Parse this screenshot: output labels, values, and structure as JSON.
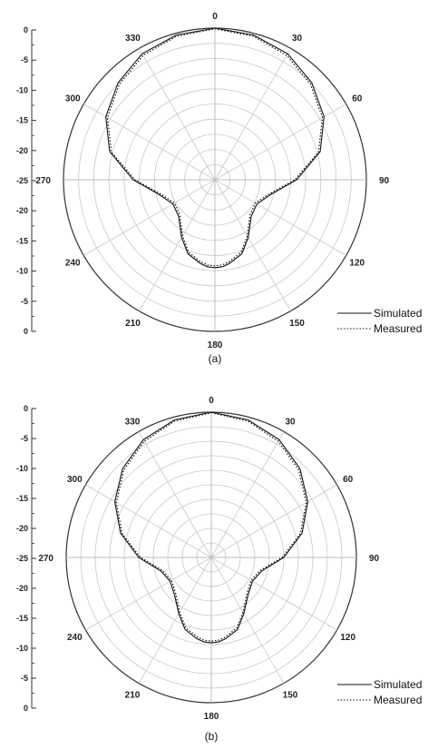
{
  "chart_data": [
    {
      "type": "polar-line",
      "caption": "(a)",
      "angle_labels": [
        "0",
        "30",
        "60",
        "90",
        "120",
        "150",
        "180",
        "210",
        "240",
        "270",
        "300",
        "330"
      ],
      "radial_ticks": [
        "0",
        "-5",
        "-10",
        "-15",
        "-20",
        "-25",
        "-20",
        "-15",
        "-10",
        "-5",
        "0"
      ],
      "rlim": [
        -25,
        0
      ],
      "legend": {
        "position": "bottom-right",
        "entries": [
          "Simulated",
          "Measured"
        ]
      },
      "series": [
        {
          "name": "Simulated",
          "style": "solid",
          "theta": [
            0,
            15,
            30,
            45,
            60,
            75,
            90,
            105,
            120,
            135,
            150,
            160,
            170,
            175,
            180,
            185,
            190,
            200,
            210,
            225,
            240,
            255,
            270,
            285,
            300,
            315,
            330,
            345
          ],
          "r": [
            0,
            -0.3,
            -1,
            -2.4,
            -4.2,
            -7,
            -11.5,
            -15.5,
            -17,
            -16.5,
            -14,
            -12,
            -11,
            -10.6,
            -10.5,
            -10.6,
            -11,
            -12,
            -14,
            -16.5,
            -17,
            -15.5,
            -11.5,
            -7,
            -4.2,
            -2.4,
            -1,
            -0.3
          ]
        },
        {
          "name": "Measured",
          "style": "dotted",
          "theta": [
            0,
            15,
            30,
            45,
            60,
            75,
            90,
            105,
            120,
            135,
            150,
            160,
            170,
            175,
            180,
            185,
            190,
            200,
            210,
            225,
            240,
            255,
            270,
            285,
            300,
            315,
            330,
            345
          ],
          "r": [
            -0.1,
            -0.5,
            -1.3,
            -2.7,
            -4.5,
            -7.3,
            -11.8,
            -15.8,
            -17.3,
            -16.8,
            -14.3,
            -12.3,
            -11.3,
            -10.9,
            -10.8,
            -10.9,
            -11.3,
            -12.3,
            -14.3,
            -16.8,
            -17.3,
            -15.8,
            -11.8,
            -7.3,
            -4.5,
            -2.7,
            -1.3,
            -0.5
          ]
        }
      ]
    },
    {
      "type": "polar-line",
      "caption": "(b)",
      "angle_labels": [
        "0",
        "30",
        "60",
        "90",
        "120",
        "150",
        "180",
        "210",
        "240",
        "270",
        "300",
        "330"
      ],
      "radial_ticks": [
        "0",
        "-5",
        "-10",
        "-15",
        "-20",
        "-25",
        "-20",
        "-15",
        "-10",
        "-5",
        "0"
      ],
      "rlim": [
        -25,
        0
      ],
      "legend": {
        "position": "bottom-right",
        "entries": [
          "Simulated",
          "Measured"
        ]
      },
      "series": [
        {
          "name": "Simulated",
          "style": "solid",
          "theta": [
            0,
            15,
            30,
            45,
            60,
            75,
            90,
            105,
            120,
            135,
            150,
            160,
            170,
            175,
            180,
            185,
            190,
            200,
            210,
            225,
            240,
            255,
            270,
            285,
            300,
            315,
            330,
            345
          ],
          "r": [
            0,
            -0.5,
            -1.6,
            -3.4,
            -5.8,
            -8.8,
            -12.5,
            -16,
            -16.8,
            -16,
            -13.8,
            -11.8,
            -10.8,
            -10.4,
            -10.3,
            -10.4,
            -10.8,
            -11.8,
            -13.8,
            -16,
            -16.8,
            -16,
            -12.5,
            -8.8,
            -5.8,
            -3.4,
            -1.6,
            -0.5
          ]
        },
        {
          "name": "Measured",
          "style": "dotted",
          "theta": [
            0,
            15,
            30,
            45,
            60,
            75,
            90,
            105,
            120,
            135,
            150,
            160,
            170,
            175,
            180,
            185,
            190,
            200,
            210,
            225,
            240,
            255,
            270,
            285,
            300,
            315,
            330,
            345
          ],
          "r": [
            -0.1,
            -0.7,
            -1.9,
            -3.7,
            -6.1,
            -9.1,
            -12.8,
            -16.3,
            -17.1,
            -16.3,
            -14.1,
            -12.1,
            -11.1,
            -10.7,
            -10.6,
            -10.7,
            -11.1,
            -12.1,
            -14.1,
            -16.3,
            -17.1,
            -16.3,
            -12.8,
            -9.1,
            -6.1,
            -3.7,
            -1.9,
            -0.7
          ]
        }
      ]
    }
  ]
}
